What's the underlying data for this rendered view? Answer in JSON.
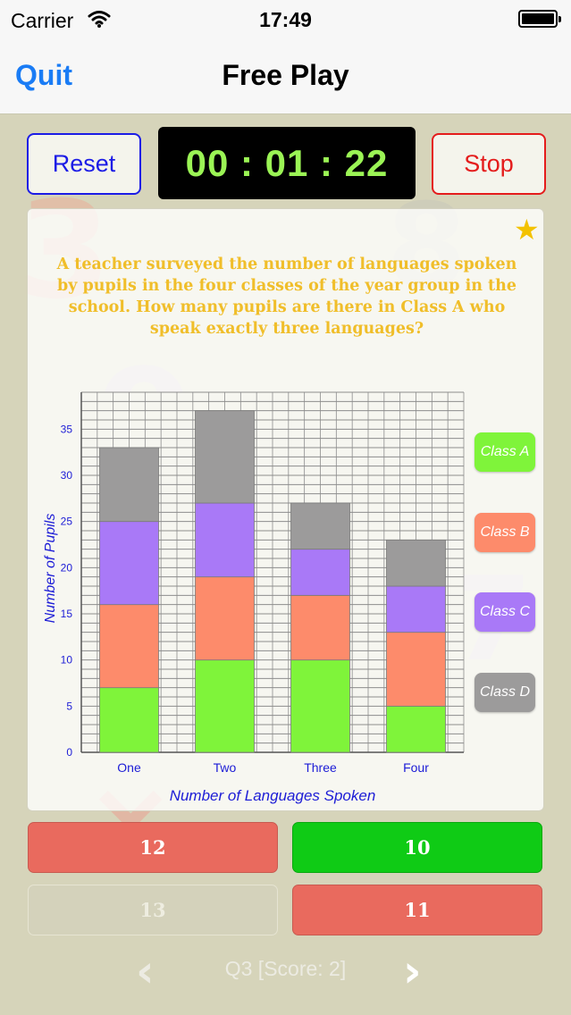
{
  "status_bar": {
    "carrier": "Carrier",
    "time": "17:49",
    "wifi_icon": "wifi-icon",
    "battery_icon": "battery-icon"
  },
  "nav": {
    "quit_label": "Quit",
    "title": "Free Play"
  },
  "controls": {
    "reset_label": "Reset",
    "timer": "00 : 01 : 22",
    "stop_label": "Stop"
  },
  "question": {
    "text": "A teacher surveyed the number of languages spoken by pupils in the four classes of the year group in the school.  How many pupils are there in Class A who speak exactly three languages?",
    "favourite_icon": "star-icon"
  },
  "chart_data": {
    "type": "bar",
    "stacked": true,
    "categories": [
      "One",
      "Two",
      "Three",
      "Four"
    ],
    "series": [
      {
        "name": "Class A",
        "values": [
          7,
          10,
          10,
          5
        ],
        "color": "#7ff43a"
      },
      {
        "name": "Class B",
        "values": [
          9,
          9,
          7,
          8
        ],
        "color": "#fd8b6b"
      },
      {
        "name": "Class C",
        "values": [
          9,
          8,
          5,
          5
        ],
        "color": "#a979f7"
      },
      {
        "name": "Class D",
        "values": [
          8,
          10,
          5,
          5
        ],
        "color": "#9c9b9b"
      }
    ],
    "xlabel": "Number of Languages Spoken",
    "ylabel": "Number of Pupils",
    "ylim": [
      0,
      39
    ],
    "yticks": [
      0,
      5,
      10,
      15,
      20,
      25,
      30,
      35
    ],
    "grid": true,
    "legend_position": "right"
  },
  "answers": [
    {
      "label": "12",
      "state": "wrong"
    },
    {
      "label": "10",
      "state": "correct"
    },
    {
      "label": "13",
      "state": "disabled"
    },
    {
      "label": "11",
      "state": "wrong"
    }
  ],
  "footer": {
    "prev_icon": "chevron-left-icon",
    "progress": "Q3 [Score: 2]",
    "next_icon": "chevron-right-icon"
  }
}
